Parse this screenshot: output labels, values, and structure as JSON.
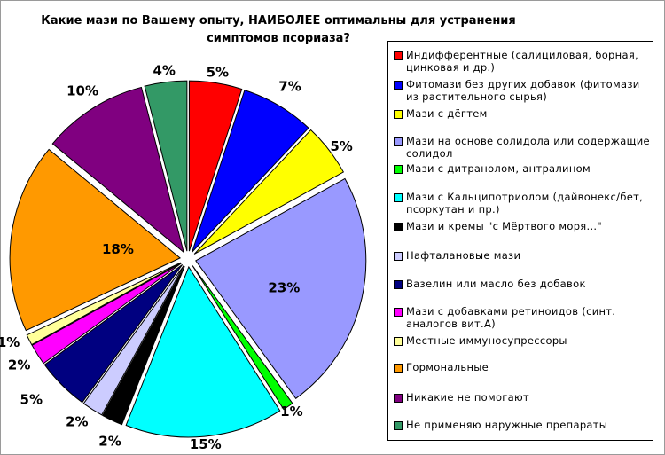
{
  "chart_data": {
    "type": "pie",
    "title": "Какие мази по Вашему опыту, НАИБОЛЕЕ оптимальны для устранения симптомов псориаза?",
    "title_lines": [
      "Какие мази по Вашему опыту, НАИБОЛЕЕ оптимальны для устранения",
      "симптомов псориаза?"
    ],
    "legend_position": "right",
    "slices": [
      {
        "label": "Индифферентные (салициловая, борная, цинковая и др.)",
        "value": 5,
        "value_label": "5%",
        "color": "#ff0000"
      },
      {
        "label": "Фитомази без других добавок (фитомази из растительного сырья)",
        "value": 7,
        "value_label": "7%",
        "color": "#0000ff"
      },
      {
        "label": "Мази с дёгтем",
        "value": 5,
        "value_label": "5%",
        "color": "#ffff00"
      },
      {
        "label": "Мази на основе солидола или содержащие солидол",
        "value": 23,
        "value_label": "23%",
        "color": "#9999ff"
      },
      {
        "label": "Мази с дитранолом, антралином",
        "value": 1,
        "value_label": "1%",
        "color": "#00ff00"
      },
      {
        "label": "Мази с Кальципотриолом (дайвонекс/бет, псоркутан и пр.)",
        "value": 15,
        "value_label": "15%",
        "color": "#00ffff"
      },
      {
        "label": "Мази и кремы \"с Мёртвого моря...\"",
        "value": 2,
        "value_label": "2%",
        "color": "#000000"
      },
      {
        "label": "Нафталановые мази",
        "value": 2,
        "value_label": "2%",
        "color": "#ccccff"
      },
      {
        "label": "Вазелин или масло без добавок",
        "value": 5,
        "value_label": "5%",
        "color": "#000080"
      },
      {
        "label": "Мази с добавками ретиноидов (синт. аналогов вит.А)",
        "value": 2,
        "value_label": "2%",
        "color": "#ff00ff"
      },
      {
        "label": "Местные иммуносупрессоры",
        "value": 1,
        "value_label": "1%",
        "color": "#ffff99"
      },
      {
        "label": "Гормональные",
        "value": 18,
        "value_label": "18%",
        "color": "#ff9900"
      },
      {
        "label": "Никакие не помогают",
        "value": 10,
        "value_label": "10%",
        "color": "#800080"
      },
      {
        "label": "Не применяю наружные препараты",
        "value": 4,
        "value_label": "4%",
        "color": "#339966"
      }
    ]
  }
}
